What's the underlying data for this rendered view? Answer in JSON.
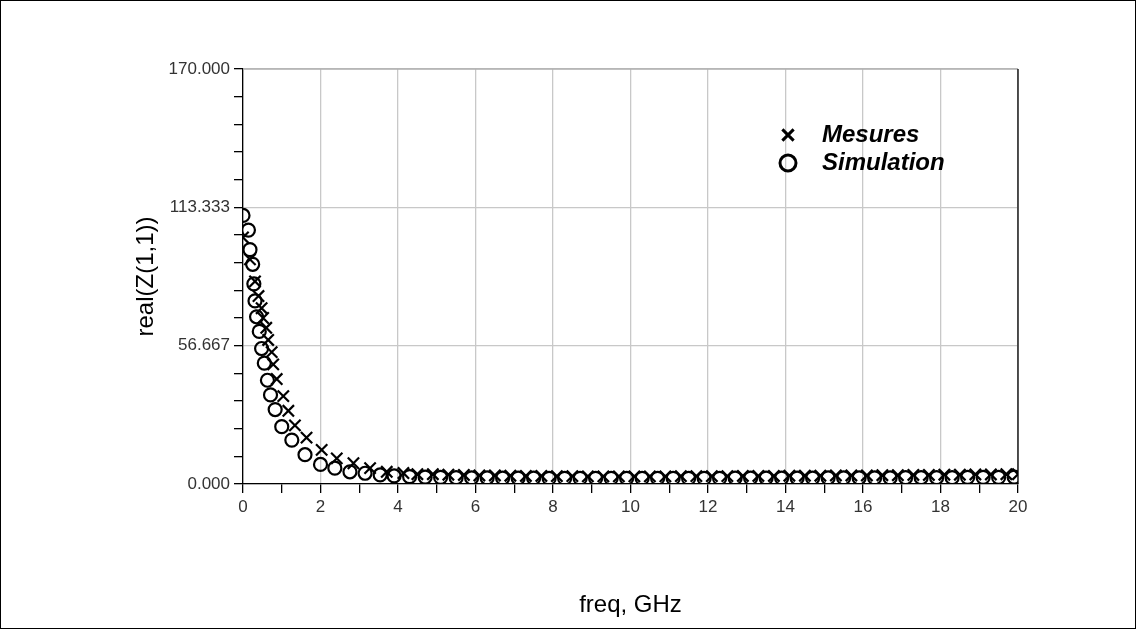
{
  "chart_data": {
    "type": "scatter",
    "xlabel": "freq, GHz",
    "ylabel": "real(Z(1,1))",
    "xlim": [
      0,
      20
    ],
    "xticks": [
      0,
      {
        "value": 1,
        "label": null
      },
      2,
      {
        "value": 3,
        "label": null
      },
      4,
      {
        "value": 5,
        "label": null
      },
      6,
      {
        "value": 7,
        "label": null
      },
      8,
      {
        "value": 9,
        "label": null
      },
      10,
      {
        "value": 11,
        "label": null
      },
      12,
      {
        "value": 13,
        "label": null
      },
      14,
      {
        "value": 15,
        "label": null
      },
      16,
      {
        "value": 17,
        "label": null
      },
      18,
      {
        "value": 19,
        "label": null
      },
      20
    ],
    "ylim": [
      0,
      170
    ],
    "yticks": [
      {
        "value": 0,
        "label": "0.000"
      },
      {
        "value": 11.333,
        "label": null
      },
      {
        "value": 22.667,
        "label": null
      },
      {
        "value": 34,
        "label": null
      },
      {
        "value": 45.333,
        "label": null
      },
      {
        "value": 56.667,
        "label": "56.667"
      },
      {
        "value": 68,
        "label": null
      },
      {
        "value": 79.333,
        "label": null
      },
      {
        "value": 90.667,
        "label": null
      },
      {
        "value": 102,
        "label": null
      },
      {
        "value": 113.333,
        "label": "113.333"
      },
      {
        "value": 124.667,
        "label": null
      },
      {
        "value": 136,
        "label": null
      },
      {
        "value": 147.333,
        "label": null
      },
      {
        "value": 158.667,
        "label": null
      },
      {
        "value": 170,
        "label": "170.000"
      }
    ],
    "grid": true,
    "legend": "top right",
    "series": [
      {
        "name": "Mesures",
        "color": "#000000",
        "marker": "cross",
        "x": [
          0,
          0.18,
          0.31,
          0.4,
          0.48,
          0.52,
          0.6,
          0.65,
          0.74,
          0.78,
          0.87,
          1.04,
          1.17,
          1.34,
          1.64,
          2.03,
          2.42,
          2.85,
          3.28,
          3.71,
          4.14,
          4.5,
          4.9,
          5.3,
          5.7,
          6.1,
          6.5,
          6.9,
          7.3,
          7.7,
          8.1,
          8.5,
          8.9,
          9.3,
          9.7,
          10.1,
          10.5,
          10.9,
          11.3,
          11.7,
          12.1,
          12.5,
          12.9,
          13.3,
          13.7,
          14.1,
          14.5,
          14.9,
          15.3,
          15.7,
          16.1,
          16.5,
          16.9,
          17.3,
          17.7,
          18.1,
          18.5,
          18.9,
          19.3,
          19.7,
          20
        ],
        "values": [
          101,
          92,
          83,
          77,
          72,
          68,
          64,
          59,
          54,
          49,
          43,
          36,
          30,
          24,
          19,
          14,
          10.5,
          8.5,
          6.5,
          5,
          4.5,
          4,
          4,
          3.8,
          3.7,
          3.5,
          3.5,
          3.4,
          3.3,
          3.3,
          3.2,
          3.2,
          3.1,
          3.1,
          3.1,
          3.1,
          3.1,
          3.1,
          3.2,
          3.2,
          3.2,
          3.2,
          3.3,
          3.3,
          3.3,
          3.4,
          3.4,
          3.4,
          3.5,
          3.5,
          3.5,
          3.6,
          3.6,
          3.7,
          3.7,
          3.8,
          3.8,
          3.9,
          3.9,
          4,
          4
        ]
      },
      {
        "name": "Simulation",
        "color": "#000000",
        "marker": "circle",
        "x": [
          0,
          0.14,
          0.18,
          0.25,
          0.28,
          0.31,
          0.35,
          0.42,
          0.48,
          0.55,
          0.63,
          0.71,
          0.83,
          1,
          1.26,
          1.6,
          2,
          2.37,
          2.76,
          3.15,
          3.54,
          3.9,
          4.3,
          4.7,
          5.1,
          5.5,
          5.9,
          6.3,
          6.7,
          7.1,
          7.5,
          7.9,
          8.3,
          8.7,
          9.1,
          9.5,
          9.9,
          10.3,
          10.7,
          11.1,
          11.5,
          11.9,
          12.3,
          12.7,
          13.1,
          13.5,
          13.9,
          14.3,
          14.7,
          15.1,
          15.5,
          15.9,
          16.3,
          16.7,
          17.1,
          17.5,
          17.9,
          18.3,
          18.7,
          19.1,
          19.5,
          19.9
        ],
        "values": [
          110,
          104,
          96,
          90,
          82,
          75,
          68.5,
          62.5,
          55.5,
          49.5,
          42.5,
          36.5,
          30.5,
          23.5,
          18,
          12,
          8,
          6.5,
          5,
          4.4,
          3.7,
          3.3,
          3,
          2.8,
          2.7,
          2.6,
          2.5,
          2.5,
          2.4,
          2.4,
          2.4,
          2.3,
          2.3,
          2.3,
          2.3,
          2.3,
          2.3,
          2.3,
          2.3,
          2.3,
          2.3,
          2.3,
          2.3,
          2.4,
          2.4,
          2.4,
          2.4,
          2.4,
          2.4,
          2.5,
          2.5,
          2.5,
          2.5,
          2.5,
          2.6,
          2.6,
          2.6,
          2.6,
          2.7,
          2.7,
          2.7,
          2.8
        ]
      }
    ]
  }
}
